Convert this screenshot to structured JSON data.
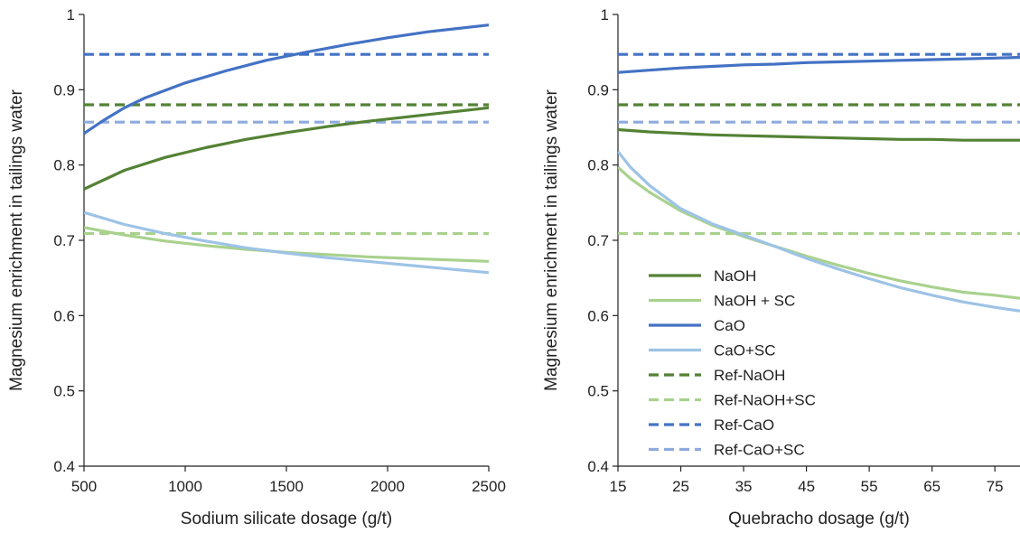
{
  "chart_data": [
    {
      "type": "line",
      "xlabel": "Sodium silicate dosage (g/t)",
      "ylabel": "Magnesium enrichment in tailings water",
      "xlim": [
        500,
        2500
      ],
      "ylim": [
        0.4,
        1.0
      ],
      "xticks": [
        500,
        1000,
        1500,
        2000,
        2500
      ],
      "yticks": [
        0.4,
        0.5,
        0.6,
        0.7,
        0.8,
        0.9,
        1.0
      ],
      "ytick_labels": [
        "0.4",
        "0.5",
        "0.6",
        "0.7",
        "0.8",
        "0.9",
        "1"
      ],
      "legend": false,
      "series": [
        {
          "name": "NaOH",
          "color": "#548235",
          "dashed": false,
          "x": [
            500,
            700,
            900,
            1100,
            1300,
            1500,
            1700,
            1900,
            2100,
            2300,
            2500
          ],
          "y": [
            0.768,
            0.793,
            0.81,
            0.823,
            0.834,
            0.843,
            0.851,
            0.858,
            0.864,
            0.87,
            0.876
          ]
        },
        {
          "name": "NaOH + SC",
          "color": "#A9D18E",
          "dashed": false,
          "x": [
            500,
            700,
            900,
            1100,
            1300,
            1500,
            1700,
            1900,
            2100,
            2300,
            2500
          ],
          "y": [
            0.717,
            0.707,
            0.699,
            0.693,
            0.688,
            0.684,
            0.681,
            0.678,
            0.676,
            0.674,
            0.672
          ]
        },
        {
          "name": "CaO",
          "color": "#4472C4",
          "dashed": false,
          "x": [
            500,
            600,
            700,
            800,
            1000,
            1200,
            1400,
            1600,
            1800,
            2000,
            2200,
            2400,
            2500
          ],
          "y": [
            0.842,
            0.86,
            0.876,
            0.889,
            0.909,
            0.925,
            0.939,
            0.95,
            0.96,
            0.969,
            0.977,
            0.983,
            0.986
          ]
        },
        {
          "name": "CaO+SC",
          "color": "#9DC3E6",
          "dashed": false,
          "x": [
            500,
            700,
            900,
            1100,
            1300,
            1500,
            1700,
            1900,
            2100,
            2300,
            2500
          ],
          "y": [
            0.737,
            0.721,
            0.709,
            0.699,
            0.69,
            0.683,
            0.677,
            0.672,
            0.667,
            0.662,
            0.657
          ]
        },
        {
          "name": "Ref-NaOH",
          "color": "#548235",
          "dashed": true,
          "x": [
            500,
            2500
          ],
          "y": [
            0.88,
            0.88
          ]
        },
        {
          "name": "Ref-NaOH+SC",
          "color": "#A9D18E",
          "dashed": true,
          "x": [
            500,
            2500
          ],
          "y": [
            0.709,
            0.709
          ]
        },
        {
          "name": "Ref-CaO",
          "color": "#4472C4",
          "dashed": true,
          "x": [
            500,
            2500
          ],
          "y": [
            0.947,
            0.947
          ]
        },
        {
          "name": "Ref-CaO+SC",
          "color": "#8FAADC",
          "dashed": true,
          "x": [
            500,
            2500
          ],
          "y": [
            0.857,
            0.857
          ]
        }
      ]
    },
    {
      "type": "line",
      "xlabel": "Quebracho dosage (g/t)",
      "ylabel": "Magnesium enrichment in tailings water",
      "xlim": [
        15,
        79
      ],
      "ylim": [
        0.4,
        1.0
      ],
      "xticks": [
        15,
        25,
        35,
        45,
        55,
        65,
        75
      ],
      "yticks": [
        0.4,
        0.5,
        0.6,
        0.7,
        0.8,
        0.9,
        1.0
      ],
      "ytick_labels": [
        "0.4",
        "0.5",
        "0.6",
        "0.7",
        "0.8",
        "0.9",
        "1"
      ],
      "legend": true,
      "legend_position": "lower-left",
      "series": [
        {
          "name": "NaOH",
          "color": "#548235",
          "dashed": false,
          "x": [
            15,
            20,
            25,
            30,
            35,
            40,
            45,
            50,
            55,
            60,
            65,
            70,
            75,
            79
          ],
          "y": [
            0.847,
            0.844,
            0.842,
            0.84,
            0.839,
            0.838,
            0.837,
            0.836,
            0.835,
            0.834,
            0.834,
            0.833,
            0.833,
            0.833
          ]
        },
        {
          "name": "NaOH + SC",
          "color": "#A9D18E",
          "dashed": false,
          "x": [
            15,
            17,
            20,
            25,
            30,
            35,
            40,
            45,
            50,
            55,
            60,
            65,
            70,
            75,
            79
          ],
          "y": [
            0.797,
            0.782,
            0.764,
            0.739,
            0.72,
            0.705,
            0.692,
            0.679,
            0.667,
            0.656,
            0.646,
            0.638,
            0.631,
            0.627,
            0.623
          ]
        },
        {
          "name": "CaO",
          "color": "#4472C4",
          "dashed": false,
          "x": [
            15,
            20,
            25,
            30,
            35,
            40,
            45,
            50,
            55,
            60,
            65,
            70,
            75,
            79
          ],
          "y": [
            0.923,
            0.926,
            0.929,
            0.931,
            0.933,
            0.934,
            0.936,
            0.937,
            0.938,
            0.939,
            0.94,
            0.941,
            0.942,
            0.943
          ]
        },
        {
          "name": "CaO+SC",
          "color": "#9DC3E6",
          "dashed": false,
          "x": [
            15,
            17,
            20,
            25,
            30,
            35,
            40,
            45,
            50,
            55,
            60,
            65,
            70,
            75,
            79
          ],
          "y": [
            0.818,
            0.797,
            0.773,
            0.742,
            0.722,
            0.707,
            0.692,
            0.676,
            0.662,
            0.649,
            0.637,
            0.627,
            0.618,
            0.611,
            0.606
          ]
        },
        {
          "name": "Ref-NaOH",
          "color": "#548235",
          "dashed": true,
          "x": [
            15,
            79
          ],
          "y": [
            0.88,
            0.88
          ]
        },
        {
          "name": "Ref-NaOH+SC",
          "color": "#A9D18E",
          "dashed": true,
          "x": [
            15,
            79
          ],
          "y": [
            0.709,
            0.709
          ]
        },
        {
          "name": "Ref-CaO",
          "color": "#4472C4",
          "dashed": true,
          "x": [
            15,
            79
          ],
          "y": [
            0.947,
            0.947
          ]
        },
        {
          "name": "Ref-CaO+SC",
          "color": "#8FAADC",
          "dashed": true,
          "x": [
            15,
            79
          ],
          "y": [
            0.857,
            0.857
          ]
        }
      ]
    }
  ]
}
